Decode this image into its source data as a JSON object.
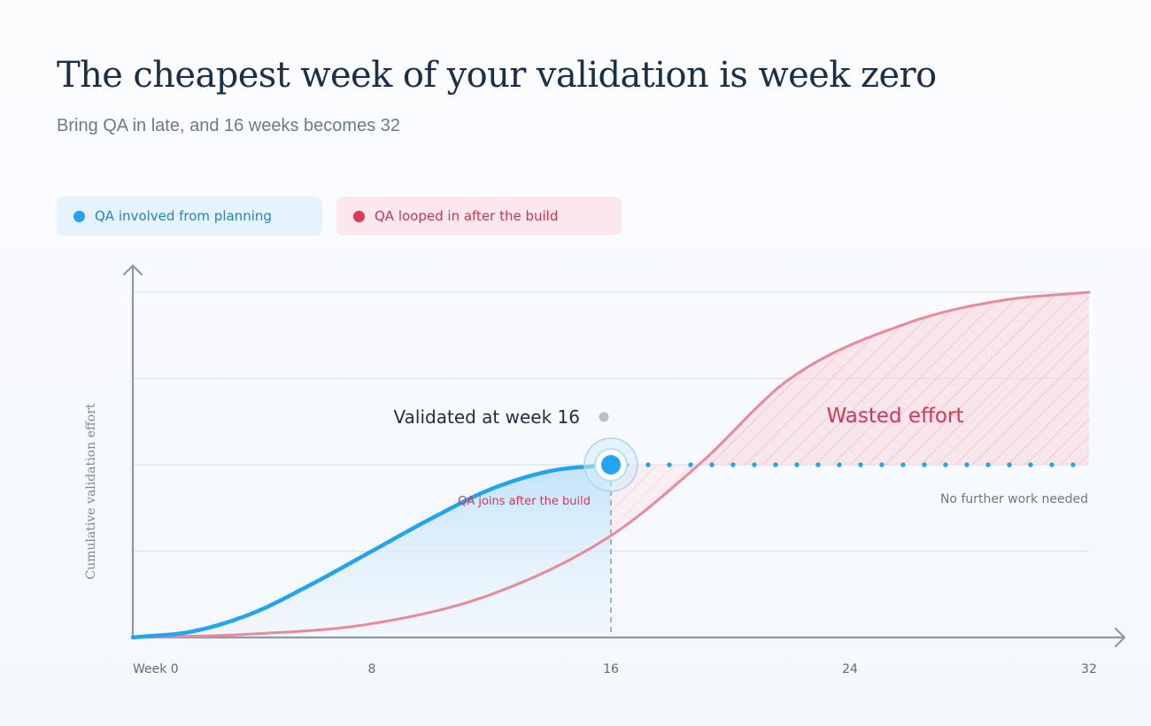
{
  "header": {
    "title": "The cheapest week of your validation is week zero",
    "subtitle": "Bring QA in late, and 16 weeks becomes 32"
  },
  "legend": {
    "items": [
      {
        "label": "QA involved from planning",
        "color": "#22a5f1"
      },
      {
        "label": "QA looped in after the build",
        "color": "#dc3a5b"
      }
    ]
  },
  "colors": {
    "early": "#22a5f1",
    "late": "#e88a9c",
    "late_text": "#d93452",
    "axis": "#8a98a8",
    "grid": "#dbe6ef"
  },
  "chart_data": {
    "type": "line",
    "xlabel": "",
    "ylabel": "Cumulative validation effort",
    "x_ticks": [
      {
        "value": 0,
        "label": "Week 0"
      },
      {
        "value": 8,
        "label": "8"
      },
      {
        "value": 16,
        "label": "16"
      },
      {
        "value": 24,
        "label": "24"
      },
      {
        "value": 32,
        "label": "32"
      }
    ],
    "xlim": [
      0,
      32
    ],
    "ylim": [
      0,
      4
    ],
    "y_gridlines": [
      1,
      2,
      3,
      4
    ],
    "series": [
      {
        "name": "QA involved from planning",
        "x": [
          0,
          2,
          4,
          6,
          8,
          10,
          12,
          14,
          16
        ],
        "y": [
          0,
          0.07,
          0.28,
          0.62,
          1.0,
          1.38,
          1.72,
          1.93,
          2.0
        ]
      },
      {
        "name": "QA looped in after the build",
        "x": [
          0,
          4,
          8,
          12,
          16,
          19,
          22,
          26,
          29,
          32
        ],
        "y": [
          0,
          0.04,
          0.16,
          0.5,
          1.18,
          2.02,
          3.0,
          3.65,
          3.9,
          4.0
        ]
      }
    ],
    "early_plateau": {
      "x_start": 16,
      "x_end": 32,
      "y": 2.0
    },
    "annotations": {
      "validated": "Validated at week 16",
      "qa_joins": "QA joins after the build",
      "wasted": "Wasted effort",
      "no_further": "No further work needed"
    }
  }
}
